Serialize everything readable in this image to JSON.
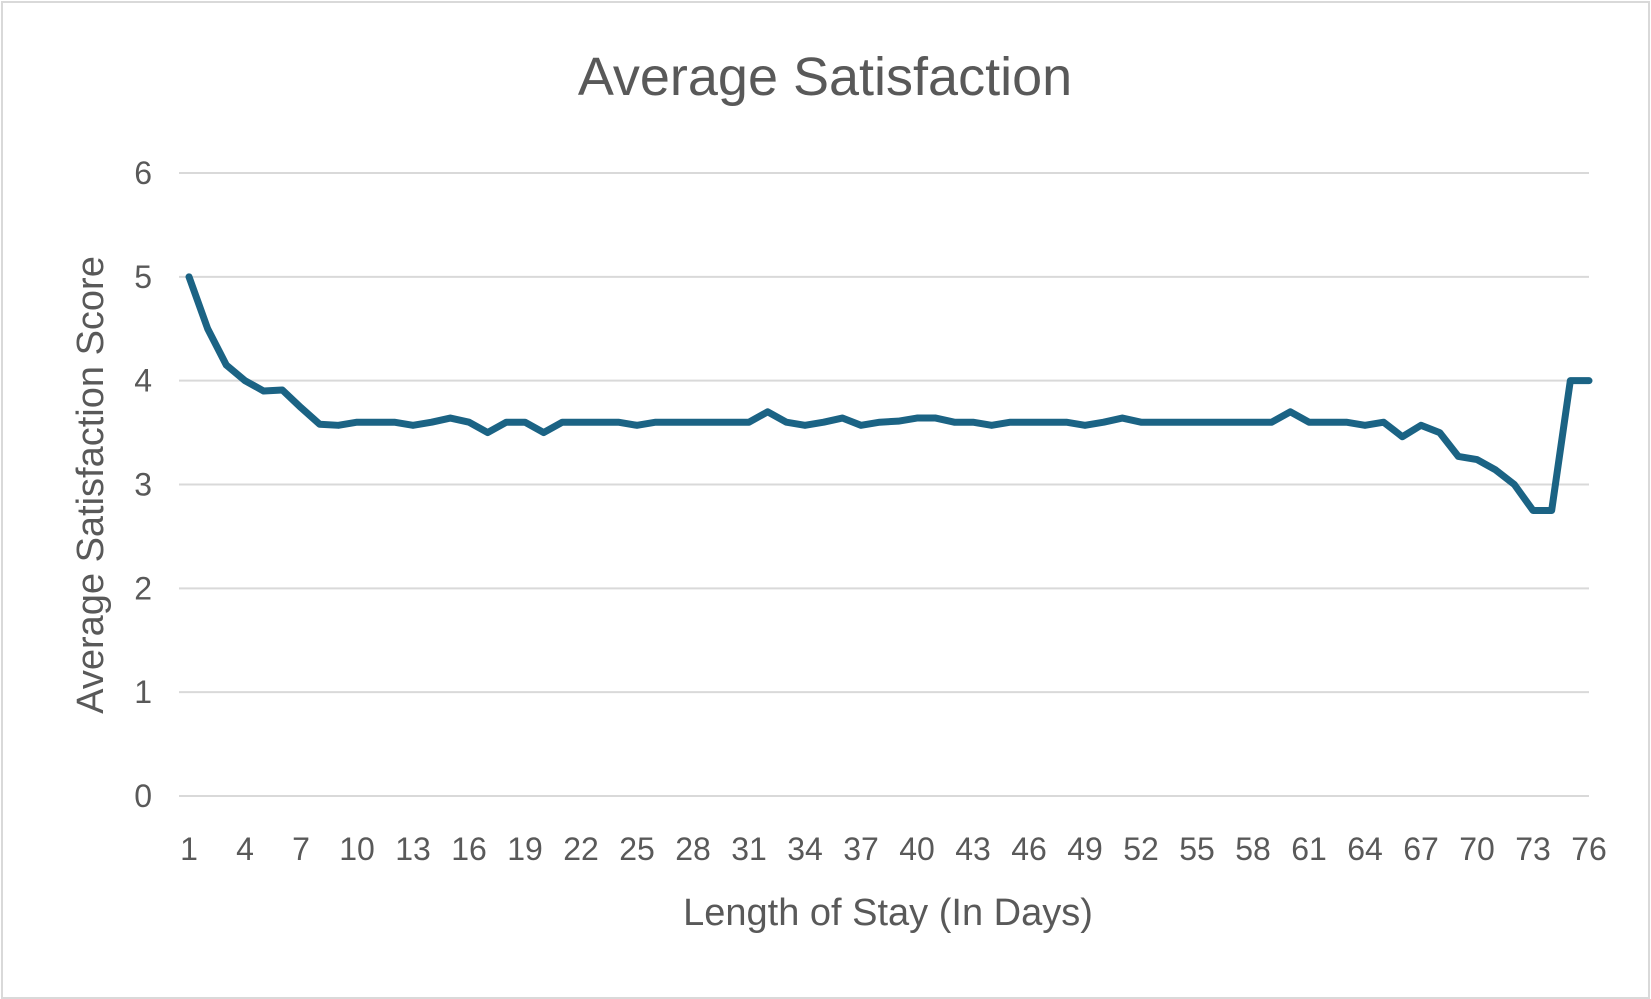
{
  "chart_data": {
    "type": "line",
    "title": "Average Satisfaction",
    "xlabel": "Length of Stay (In Days)",
    "ylabel": "Average Satisfaction Score",
    "ylim": [
      0,
      6
    ],
    "yticks": [
      0,
      1,
      2,
      3,
      4,
      5,
      6
    ],
    "xlim": [
      1,
      76
    ],
    "xticks": [
      1,
      4,
      7,
      10,
      13,
      16,
      19,
      22,
      25,
      28,
      31,
      34,
      37,
      40,
      43,
      46,
      49,
      52,
      55,
      58,
      61,
      64,
      67,
      70,
      73,
      76
    ],
    "grid": true,
    "legend": "none",
    "line_color": "#1b6384",
    "x": [
      1,
      2,
      3,
      4,
      5,
      6,
      7,
      8,
      9,
      10,
      11,
      12,
      13,
      14,
      15,
      16,
      17,
      18,
      19,
      20,
      21,
      22,
      23,
      24,
      25,
      26,
      27,
      28,
      29,
      30,
      31,
      32,
      33,
      34,
      35,
      36,
      37,
      38,
      39,
      40,
      41,
      42,
      43,
      44,
      45,
      46,
      47,
      48,
      49,
      50,
      51,
      52,
      53,
      54,
      55,
      56,
      57,
      58,
      59,
      60,
      61,
      62,
      63,
      64,
      65,
      66,
      67,
      68,
      69,
      70,
      71,
      72,
      73,
      74,
      75,
      76
    ],
    "series": [
      {
        "values": [
          5.0,
          4.5,
          4.15,
          4.0,
          3.9,
          3.91,
          3.74,
          3.58,
          3.57,
          3.6,
          3.6,
          3.6,
          3.57,
          3.6,
          3.64,
          3.6,
          3.5,
          3.6,
          3.6,
          3.5,
          3.6,
          3.6,
          3.6,
          3.6,
          3.57,
          3.6,
          3.6,
          3.6,
          3.6,
          3.6,
          3.6,
          3.7,
          3.6,
          3.57,
          3.6,
          3.64,
          3.57,
          3.6,
          3.61,
          3.64,
          3.64,
          3.6,
          3.6,
          3.57,
          3.6,
          3.6,
          3.6,
          3.6,
          3.57,
          3.6,
          3.64,
          3.6,
          3.6,
          3.6,
          3.6,
          3.6,
          3.6,
          3.6,
          3.6,
          3.7,
          3.6,
          3.6,
          3.6,
          3.57,
          3.6,
          3.46,
          3.57,
          3.5,
          3.27,
          3.24,
          3.14,
          3.0,
          2.75,
          2.75,
          4.0,
          4.0
        ]
      }
    ]
  }
}
